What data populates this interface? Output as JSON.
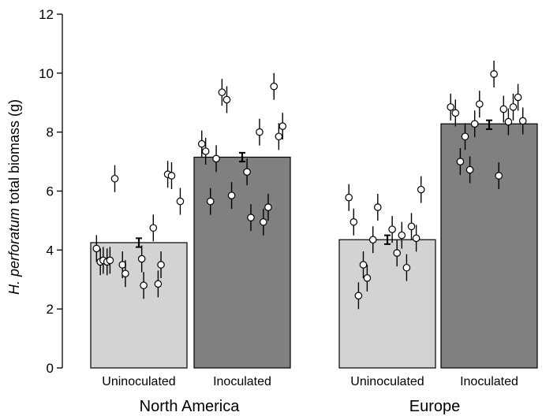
{
  "chart_data": {
    "type": "bar",
    "ylabel_italic": "H. perforatum",
    "ylabel_rest": " total biomass (g)",
    "ylim": [
      0,
      12
    ],
    "yticks": [
      0,
      2,
      4,
      6,
      8,
      10,
      12
    ],
    "groups": [
      "North America",
      "Europe"
    ],
    "bars": [
      {
        "group": "North America",
        "category": "Uninoculated",
        "value": 4.25,
        "mean_point": 4.25,
        "se": 0.15,
        "color": "#d3d3d3",
        "points": [
          [
            0.06,
            4.05
          ],
          [
            0.1,
            3.6
          ],
          [
            0.13,
            3.65
          ],
          [
            0.17,
            3.6
          ],
          [
            0.2,
            3.65
          ],
          [
            0.25,
            6.42
          ],
          [
            0.33,
            3.5
          ],
          [
            0.36,
            3.2
          ],
          [
            0.53,
            3.7
          ],
          [
            0.55,
            2.8
          ],
          [
            0.65,
            4.75
          ],
          [
            0.7,
            2.85
          ],
          [
            0.73,
            3.5
          ],
          [
            0.8,
            6.57
          ],
          [
            0.84,
            6.52
          ],
          [
            0.93,
            5.65
          ]
        ]
      },
      {
        "group": "North America",
        "category": "Inoculated",
        "value": 7.15,
        "mean_point": 7.15,
        "se": 0.15,
        "color": "#808080",
        "points": [
          [
            0.08,
            7.6
          ],
          [
            0.12,
            7.35
          ],
          [
            0.17,
            5.65
          ],
          [
            0.23,
            7.1
          ],
          [
            0.29,
            9.35
          ],
          [
            0.34,
            9.1
          ],
          [
            0.39,
            5.85
          ],
          [
            0.55,
            6.65
          ],
          [
            0.59,
            5.1
          ],
          [
            0.68,
            8.0
          ],
          [
            0.72,
            4.95
          ],
          [
            0.77,
            5.45
          ],
          [
            0.83,
            9.55
          ],
          [
            0.88,
            7.85
          ],
          [
            0.92,
            8.2
          ]
        ]
      },
      {
        "group": "Europe",
        "category": "Uninoculated",
        "value": 4.35,
        "mean_point": 4.35,
        "se": 0.15,
        "color": "#d3d3d3",
        "points": [
          [
            0.1,
            5.78
          ],
          [
            0.15,
            4.95
          ],
          [
            0.2,
            2.45
          ],
          [
            0.25,
            3.5
          ],
          [
            0.29,
            3.05
          ],
          [
            0.35,
            4.35
          ],
          [
            0.4,
            5.45
          ],
          [
            0.55,
            4.7
          ],
          [
            0.6,
            3.9
          ],
          [
            0.65,
            4.5
          ],
          [
            0.7,
            3.4
          ],
          [
            0.75,
            4.8
          ],
          [
            0.8,
            4.4
          ],
          [
            0.85,
            6.05
          ]
        ]
      },
      {
        "group": "Europe",
        "category": "Inoculated",
        "value": 8.28,
        "mean_point": 8.25,
        "se": 0.15,
        "color": "#808080",
        "points": [
          [
            0.1,
            8.85
          ],
          [
            0.15,
            8.65
          ],
          [
            0.2,
            7.0
          ],
          [
            0.25,
            7.85
          ],
          [
            0.3,
            6.72
          ],
          [
            0.35,
            8.28
          ],
          [
            0.4,
            8.95
          ],
          [
            0.55,
            9.97
          ],
          [
            0.6,
            6.52
          ],
          [
            0.65,
            8.78
          ],
          [
            0.7,
            8.35
          ],
          [
            0.75,
            8.85
          ],
          [
            0.8,
            9.18
          ],
          [
            0.85,
            8.38
          ]
        ]
      }
    ]
  }
}
